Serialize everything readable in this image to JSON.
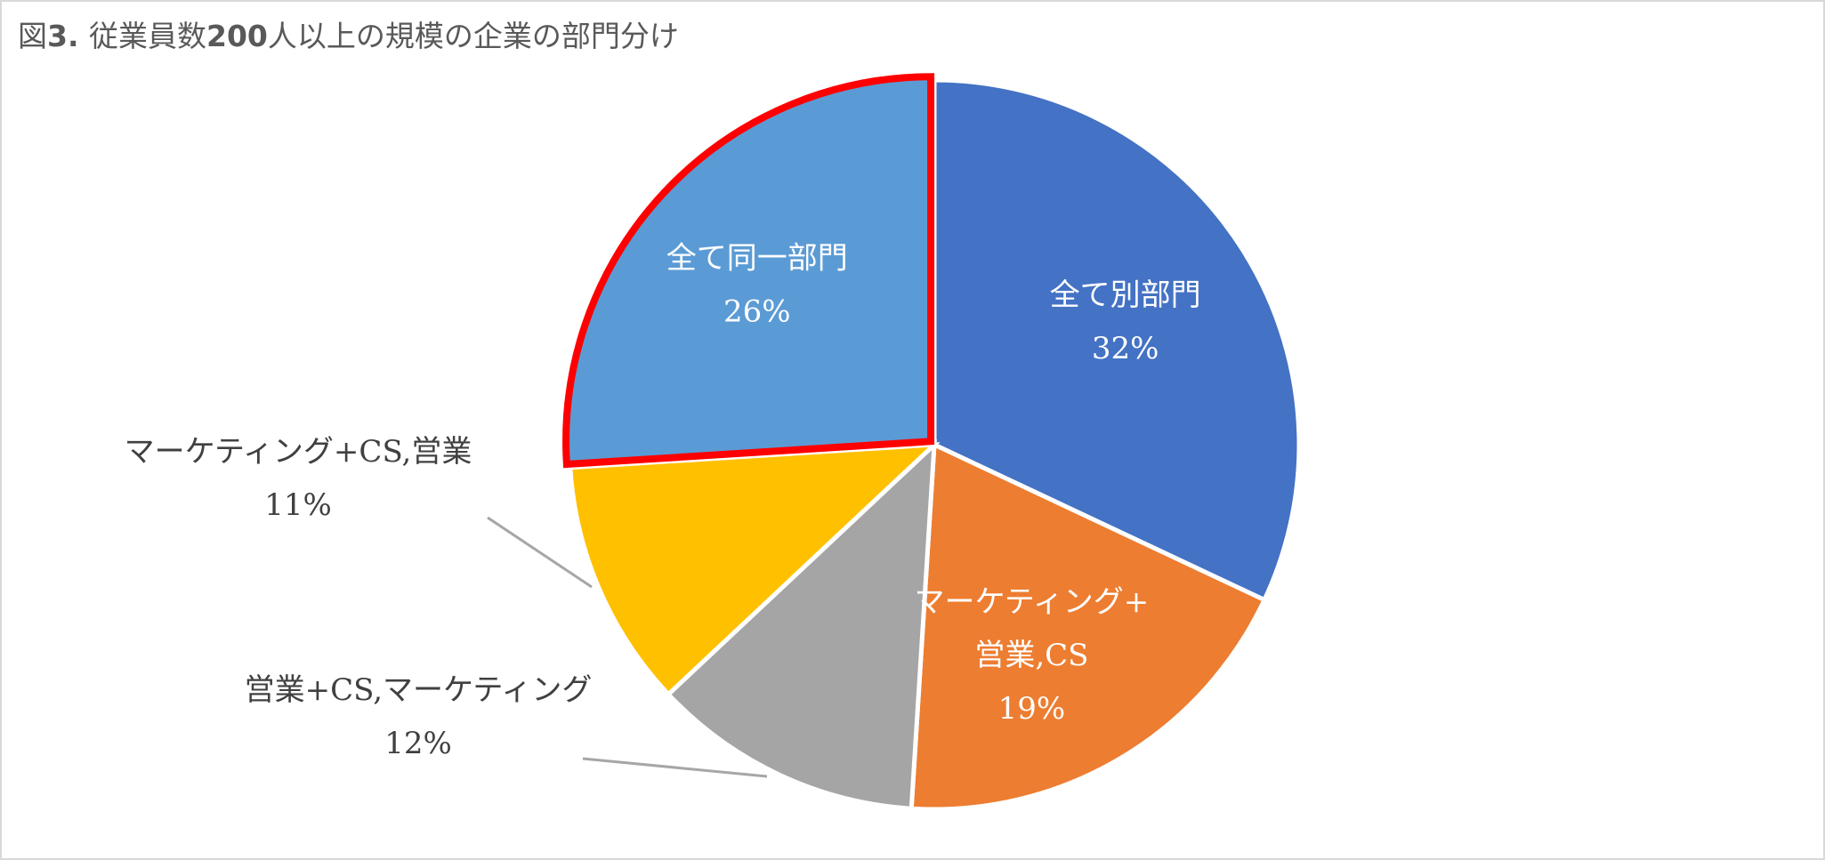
{
  "chart_data": {
    "type": "pie",
    "title_prefix": "図",
    "title_number": "3",
    "title_dot": ". ",
    "title_text1": "従業員数",
    "title_number2": "200",
    "title_text2": "人以上の規模の企業の部門分け",
    "slices": [
      {
        "label": "全て別部門",
        "value": 32,
        "pct_label": "32%",
        "color": "#4472C4",
        "label_lines": [
          "全て別部門"
        ],
        "label_pos": "inside",
        "highlight": false
      },
      {
        "label": "マーケティング+営業,CS",
        "value": 19,
        "pct_label": "19%",
        "color": "#ED7D31",
        "label_lines": [
          "マーケティング+",
          "営業,CS"
        ],
        "label_pos": "inside",
        "highlight": false
      },
      {
        "label": "営業+CS,マーケティング",
        "value": 12,
        "pct_label": "12%",
        "color": "#A5A5A5",
        "label_lines": [
          "営業+CS,マーケティング"
        ],
        "label_pos": "outside",
        "highlight": false
      },
      {
        "label": "マーケティング+CS,営業",
        "value": 11,
        "pct_label": "11%",
        "color": "#FFC000",
        "label_lines": [
          "マーケティング+CS,営業"
        ],
        "label_pos": "outside",
        "highlight": false
      },
      {
        "label": "全て同一部門",
        "value": 26,
        "pct_label": "26%",
        "color": "#5B9BD5",
        "label_lines": [
          "全て同一部門"
        ],
        "label_pos": "inside",
        "highlight": true
      }
    ],
    "highlight_color": "#FF0000",
    "legend": "none"
  }
}
